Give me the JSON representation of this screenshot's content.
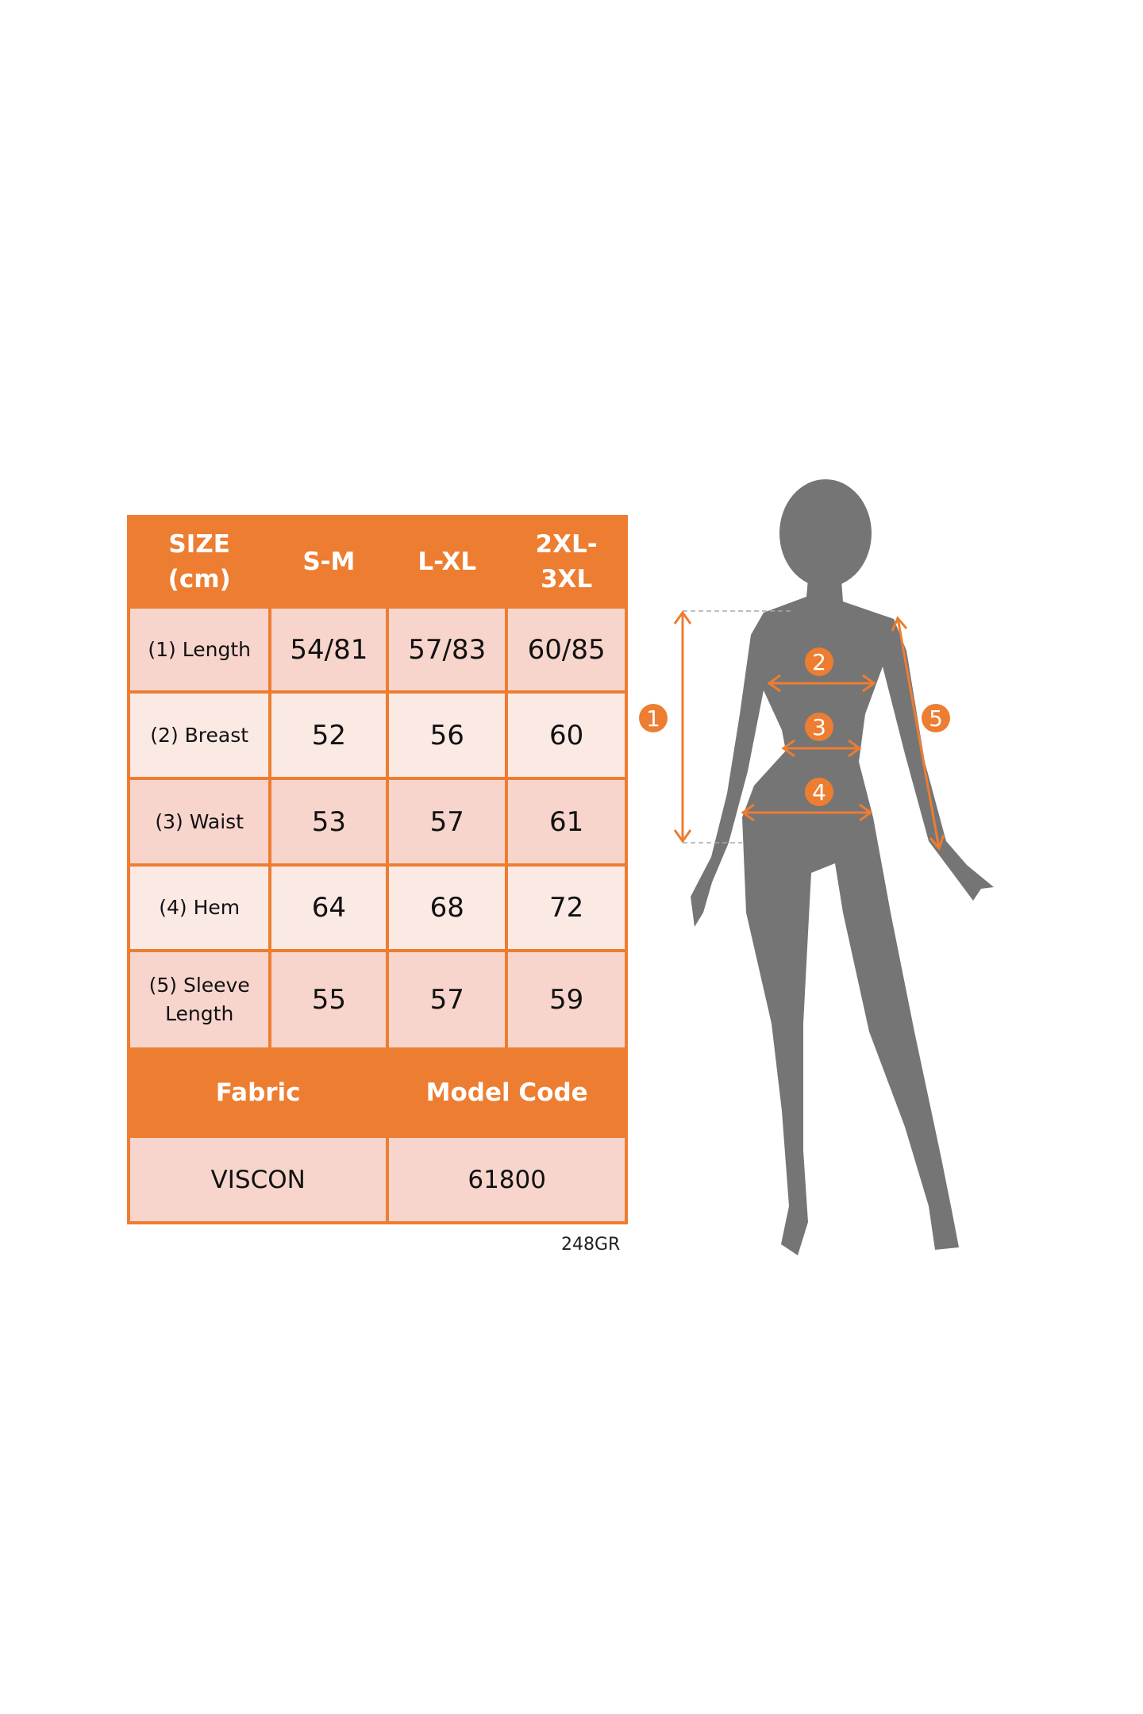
{
  "table": {
    "header": [
      "SIZE (cm)",
      "S-M",
      "L-XL",
      "2XL- 3XL"
    ],
    "header_lines": {
      "size": [
        "SIZE",
        "(cm)"
      ],
      "xxl": [
        "2XL-",
        "3XL"
      ]
    },
    "rows": [
      {
        "label": "(1) Length",
        "values": [
          "54/81",
          "57/83",
          "60/85"
        ]
      },
      {
        "label": "(2) Breast",
        "values": [
          "52",
          "56",
          "60"
        ]
      },
      {
        "label": "(3) Waist",
        "values": [
          "53",
          "57",
          "61"
        ]
      },
      {
        "label": "(4) Hem",
        "values": [
          "64",
          "68",
          "72"
        ]
      },
      {
        "label_lines": [
          "(5) Sleeve",
          "Length"
        ],
        "values": [
          "55",
          "57",
          "59"
        ]
      }
    ],
    "fabric_header": "Fabric",
    "model_code_header": "Model Code",
    "fabric": "VISCON",
    "model_code": "61800"
  },
  "code_label": "248GR",
  "figure": {
    "markers": [
      "1",
      "2",
      "3",
      "4",
      "5"
    ],
    "colors": {
      "accent": "#ED7D31",
      "silhouette": "#757575"
    }
  }
}
